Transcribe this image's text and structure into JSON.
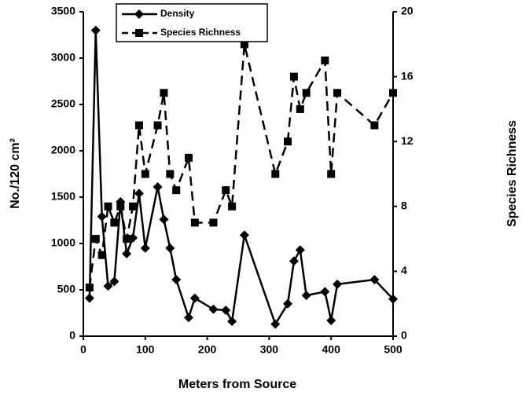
{
  "chart_data": {
    "type": "line",
    "x_label": "Meters from Source",
    "y_label": "No./120 cm²",
    "y2_label": "Species Richness",
    "xlim": [
      0,
      500
    ],
    "xticks": [
      0,
      100,
      200,
      300,
      400,
      500
    ],
    "ylim": [
      0,
      3500
    ],
    "yticks": [
      0,
      500,
      1000,
      1500,
      2000,
      2500,
      3000,
      3500
    ],
    "y2lim": [
      0,
      20
    ],
    "y2ticks": [
      0,
      4,
      8,
      12,
      16,
      20
    ],
    "legend": "top-left",
    "series": [
      {
        "name": "Density",
        "color": "#000000",
        "marker": "diamond",
        "dash": false,
        "x": [
          10,
          20,
          30,
          40,
          50,
          60,
          70,
          80,
          90,
          100,
          120,
          130,
          140,
          150,
          170,
          180,
          210,
          230,
          240,
          260,
          310,
          330,
          340,
          350,
          360,
          390,
          400,
          410,
          470,
          500
        ],
        "values": [
          410,
          3300,
          1290,
          540,
          590,
          1450,
          890,
          1060,
          1540,
          950,
          1610,
          1260,
          950,
          610,
          200,
          410,
          290,
          280,
          160,
          1090,
          130,
          350,
          810,
          930,
          440,
          480,
          170,
          560,
          610,
          400
        ]
      },
      {
        "name": "Species Richness",
        "color": "#000000",
        "marker": "square",
        "dash": true,
        "axis": "y2",
        "x": [
          10,
          20,
          30,
          40,
          50,
          60,
          70,
          80,
          90,
          100,
          120,
          130,
          140,
          150,
          170,
          180,
          210,
          230,
          240,
          260,
          310,
          330,
          340,
          350,
          360,
          390,
          400,
          410,
          470,
          500
        ],
        "values": [
          3,
          6,
          5,
          8,
          7,
          8,
          6,
          8,
          13,
          10,
          13,
          15,
          10,
          9,
          11,
          7,
          7,
          9,
          8,
          18,
          10,
          12,
          16,
          14,
          15,
          17,
          10,
          15,
          13,
          15
        ]
      }
    ]
  }
}
